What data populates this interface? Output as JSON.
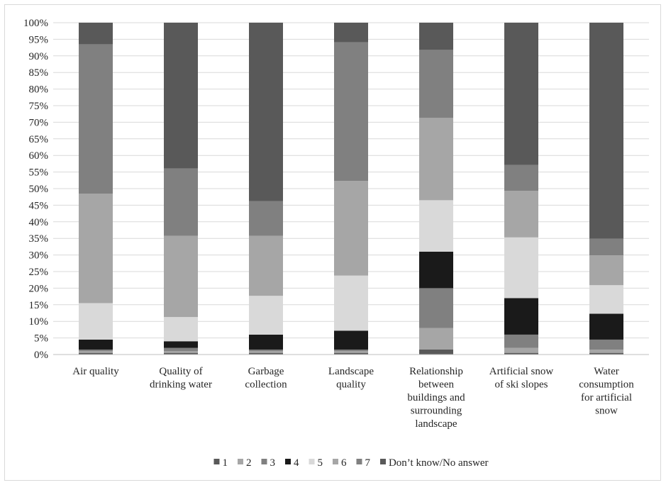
{
  "chart_data": {
    "type": "bar",
    "stacked": true,
    "normalized": true,
    "title": "",
    "xlabel": "",
    "ylabel": "",
    "ylim": [
      0,
      100
    ],
    "y_ticks": [
      "0%",
      "5%",
      "10%",
      "15%",
      "20%",
      "25%",
      "30%",
      "35%",
      "40%",
      "45%",
      "50%",
      "55%",
      "60%",
      "65%",
      "70%",
      "75%",
      "80%",
      "85%",
      "90%",
      "95%",
      "100%"
    ],
    "grid": true,
    "legend_position": "bottom",
    "categories": [
      [
        "Air quality"
      ],
      [
        "Quality of",
        "drinking water"
      ],
      [
        "Garbage",
        "collection"
      ],
      [
        "Landscape",
        "quality"
      ],
      [
        "Relationship",
        "between",
        "buildings and",
        "surrounding",
        "landscape"
      ],
      [
        "Artificial snow",
        "of ski slopes"
      ],
      [
        "Water",
        "consumption",
        "for artificial",
        "snow"
      ]
    ],
    "series": [
      {
        "name": "1",
        "color": "#595959",
        "values": [
          0.5,
          0.5,
          0.5,
          0.5,
          1.5,
          0.5,
          0.5
        ]
      },
      {
        "name": "2",
        "color": "#a6a6a6",
        "values": [
          0.5,
          0.5,
          0.5,
          0.5,
          6.5,
          1.5,
          1.0
        ]
      },
      {
        "name": "3",
        "color": "#808080",
        "values": [
          0.5,
          1.0,
          0.5,
          0.5,
          12.0,
          4.0,
          3.0
        ]
      },
      {
        "name": "4",
        "color": "#1a1a1a",
        "values": [
          3.0,
          2.0,
          4.5,
          5.7,
          11.0,
          11.0,
          7.8
        ]
      },
      {
        "name": "5",
        "color": "#d9d9d9",
        "values": [
          11.0,
          7.3,
          11.7,
          16.6,
          15.5,
          18.3,
          8.6
        ]
      },
      {
        "name": "6",
        "color": "#a6a6a6",
        "values": [
          33.0,
          24.5,
          18.1,
          28.5,
          24.8,
          14.0,
          9.0
        ]
      },
      {
        "name": "7",
        "color": "#808080",
        "values": [
          45.0,
          20.3,
          10.4,
          41.8,
          20.5,
          7.8,
          5.0
        ]
      },
      {
        "name": "Don’t know/No answer",
        "color": "#595959",
        "values": [
          6.5,
          43.9,
          53.8,
          5.9,
          8.2,
          42.9,
          65.1
        ]
      }
    ]
  }
}
